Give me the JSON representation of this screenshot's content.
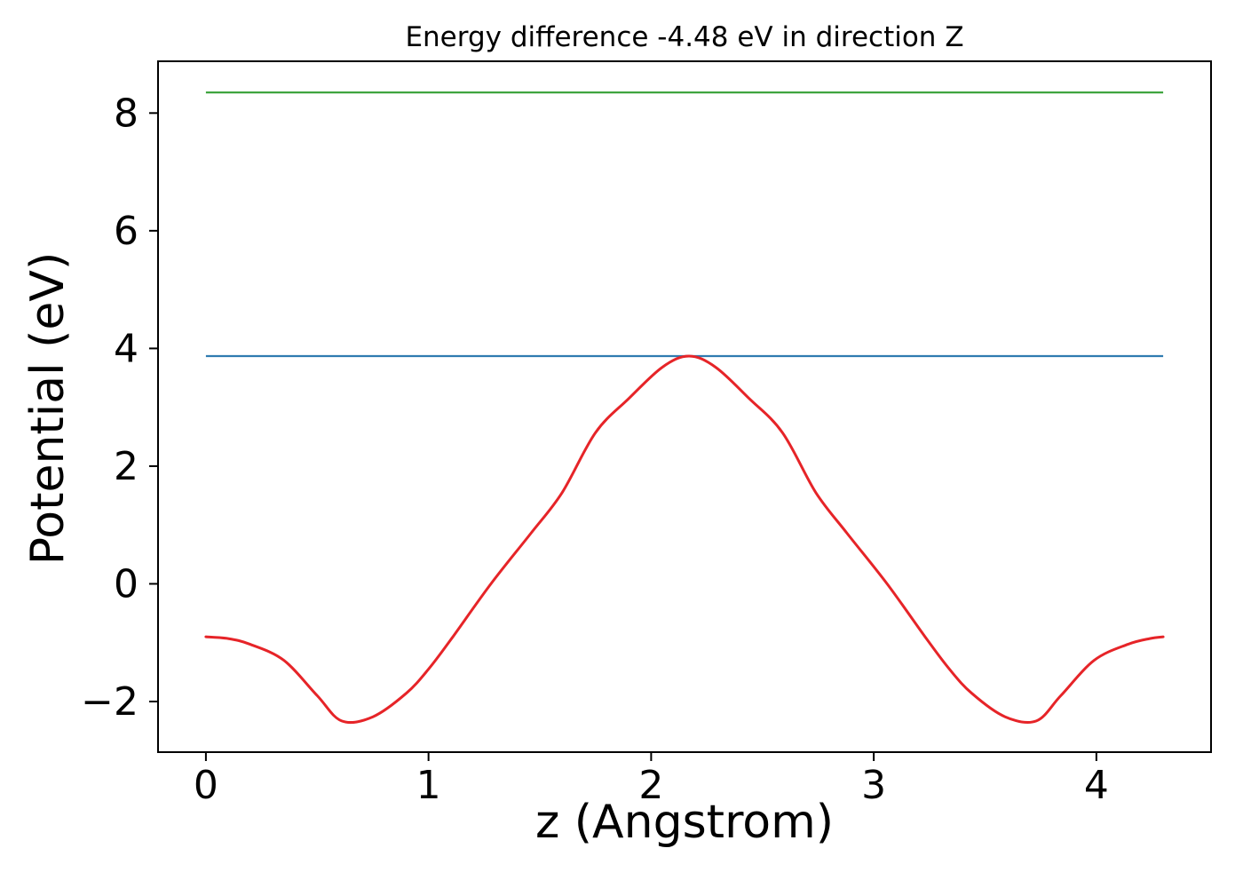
{
  "figure": {
    "background": "#ffffff"
  },
  "chart_data": {
    "type": "line",
    "title": "Energy difference -4.48 eV in direction Z",
    "xlabel": "z (Angstrom)",
    "ylabel": "Potential (eV)",
    "xlim": [
      -0.215,
      4.515
    ],
    "ylim": [
      -2.86,
      8.88
    ],
    "xticks": {
      "values": [
        0,
        1,
        2,
        3,
        4
      ],
      "labels": [
        "0",
        "1",
        "2",
        "3",
        "4"
      ]
    },
    "yticks": {
      "values": [
        -2,
        0,
        2,
        4,
        6,
        8
      ],
      "labels": [
        "−2",
        "0",
        "2",
        "4",
        "6",
        "8"
      ]
    },
    "grid": false,
    "legend": "none",
    "frame": "box",
    "axis_color": "#000000",
    "text_color": "#000000",
    "energy_difference_label_eV": "-4.48",
    "direction_label": "Z",
    "series": [
      {
        "name": "upper-energy-level",
        "type": "hline",
        "y": 8.35,
        "x_start": 0.0,
        "x_end": 4.3,
        "color": "#3fa53f",
        "width": 2.2
      },
      {
        "name": "lower-energy-level",
        "type": "hline",
        "y": 3.87,
        "x_start": 0.0,
        "x_end": 4.3,
        "color": "#2f7bb0",
        "width": 2.2
      },
      {
        "name": "potential-curve",
        "type": "curve",
        "color": "#e62428",
        "width": 3,
        "points": [
          [
            0.0,
            -0.9
          ],
          [
            0.1,
            -0.93
          ],
          [
            0.2,
            -1.03
          ],
          [
            0.35,
            -1.3
          ],
          [
            0.5,
            -1.9
          ],
          [
            0.61,
            -2.33
          ],
          [
            0.75,
            -2.26
          ],
          [
            0.9,
            -1.86
          ],
          [
            1.0,
            -1.45
          ],
          [
            1.1,
            -0.95
          ],
          [
            1.28,
            0.0
          ],
          [
            1.46,
            0.86
          ],
          [
            1.6,
            1.55
          ],
          [
            1.75,
            2.57
          ],
          [
            1.9,
            3.15
          ],
          [
            2.05,
            3.68
          ],
          [
            2.17,
            3.87
          ],
          [
            2.29,
            3.68
          ],
          [
            2.44,
            3.15
          ],
          [
            2.59,
            2.57
          ],
          [
            2.74,
            1.55
          ],
          [
            2.88,
            0.86
          ],
          [
            3.06,
            0.0
          ],
          [
            3.24,
            -0.95
          ],
          [
            3.34,
            -1.45
          ],
          [
            3.44,
            -1.86
          ],
          [
            3.59,
            -2.26
          ],
          [
            3.73,
            -2.33
          ],
          [
            3.84,
            -1.9
          ],
          [
            3.99,
            -1.3
          ],
          [
            4.14,
            -1.03
          ],
          [
            4.24,
            -0.93
          ],
          [
            4.3,
            -0.9
          ]
        ]
      }
    ]
  }
}
